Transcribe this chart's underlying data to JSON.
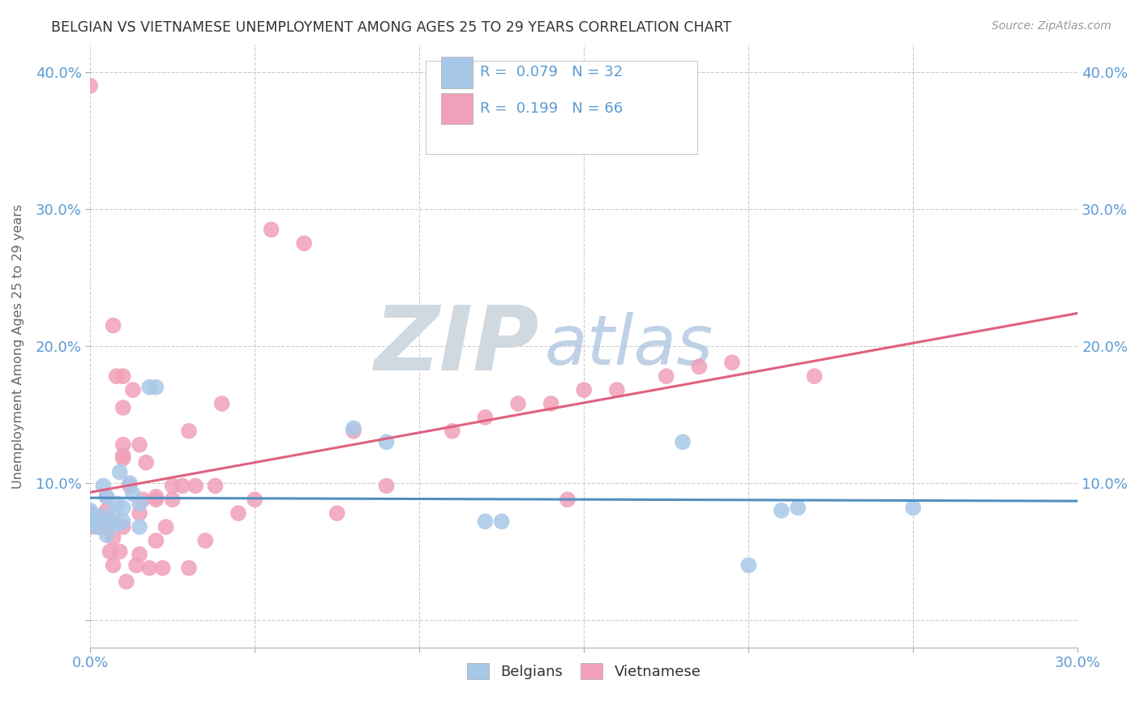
{
  "title": "BELGIAN VS VIETNAMESE UNEMPLOYMENT AMONG AGES 25 TO 29 YEARS CORRELATION CHART",
  "source": "Source: ZipAtlas.com",
  "ylabel": "Unemployment Among Ages 25 to 29 years",
  "xlim": [
    0.0,
    0.3
  ],
  "ylim": [
    -0.02,
    0.42
  ],
  "xticks": [
    0.0,
    0.05,
    0.1,
    0.15,
    0.2,
    0.25,
    0.3
  ],
  "xtick_labels": [
    "0.0%",
    "",
    "",
    "",
    "",
    "",
    "30.0%"
  ],
  "yticks": [
    0.0,
    0.1,
    0.2,
    0.3,
    0.4
  ],
  "ytick_labels": [
    "",
    "10.0%",
    "20.0%",
    "30.0%",
    "40.0%"
  ],
  "belgian_color": "#a8c8e8",
  "vietnamese_color": "#f0a0b8",
  "belgian_line_color": "#5090c0",
  "vietnamese_line_color": "#e06080",
  "R_belgian": 0.079,
  "N_belgian": 32,
  "R_vietnamese": 0.199,
  "N_vietnamese": 66,
  "background_color": "#ffffff",
  "grid_color": "#cccccc",
  "title_color": "#333333",
  "tick_label_color": "#5b9bd5",
  "belgians_x": [
    0.0,
    0.0,
    0.0,
    0.0,
    0.002,
    0.002,
    0.003,
    0.004,
    0.005,
    0.005,
    0.006,
    0.007,
    0.008,
    0.008,
    0.009,
    0.01,
    0.01,
    0.012,
    0.013,
    0.015,
    0.015,
    0.018,
    0.02,
    0.08,
    0.09,
    0.12,
    0.125,
    0.18,
    0.2,
    0.21,
    0.215,
    0.25
  ],
  "belgians_y": [
    0.07,
    0.072,
    0.075,
    0.08,
    0.068,
    0.072,
    0.076,
    0.098,
    0.062,
    0.09,
    0.072,
    0.078,
    0.07,
    0.085,
    0.108,
    0.072,
    0.082,
    0.1,
    0.092,
    0.068,
    0.085,
    0.17,
    0.17,
    0.14,
    0.13,
    0.072,
    0.072,
    0.13,
    0.04,
    0.08,
    0.082,
    0.082
  ],
  "vietnamese_x": [
    0.0,
    0.0,
    0.0,
    0.0,
    0.0,
    0.002,
    0.002,
    0.003,
    0.004,
    0.005,
    0.005,
    0.005,
    0.006,
    0.007,
    0.007,
    0.007,
    0.008,
    0.009,
    0.01,
    0.01,
    0.01,
    0.01,
    0.01,
    0.01,
    0.011,
    0.012,
    0.013,
    0.014,
    0.015,
    0.015,
    0.015,
    0.016,
    0.017,
    0.018,
    0.02,
    0.02,
    0.02,
    0.022,
    0.023,
    0.025,
    0.025,
    0.028,
    0.03,
    0.03,
    0.032,
    0.035,
    0.038,
    0.04,
    0.045,
    0.05,
    0.055,
    0.065,
    0.075,
    0.08,
    0.09,
    0.11,
    0.12,
    0.13,
    0.14,
    0.145,
    0.15,
    0.16,
    0.175,
    0.185,
    0.195,
    0.22
  ],
  "vietnamese_y": [
    0.068,
    0.07,
    0.072,
    0.078,
    0.39,
    0.07,
    0.072,
    0.068,
    0.075,
    0.068,
    0.08,
    0.09,
    0.05,
    0.06,
    0.04,
    0.215,
    0.178,
    0.05,
    0.068,
    0.118,
    0.12,
    0.128,
    0.155,
    0.178,
    0.028,
    0.098,
    0.168,
    0.04,
    0.048,
    0.078,
    0.128,
    0.088,
    0.115,
    0.038,
    0.058,
    0.088,
    0.09,
    0.038,
    0.068,
    0.088,
    0.098,
    0.098,
    0.138,
    0.038,
    0.098,
    0.058,
    0.098,
    0.158,
    0.078,
    0.088,
    0.285,
    0.275,
    0.078,
    0.138,
    0.098,
    0.138,
    0.148,
    0.158,
    0.158,
    0.088,
    0.168,
    0.168,
    0.178,
    0.185,
    0.188,
    0.178
  ]
}
